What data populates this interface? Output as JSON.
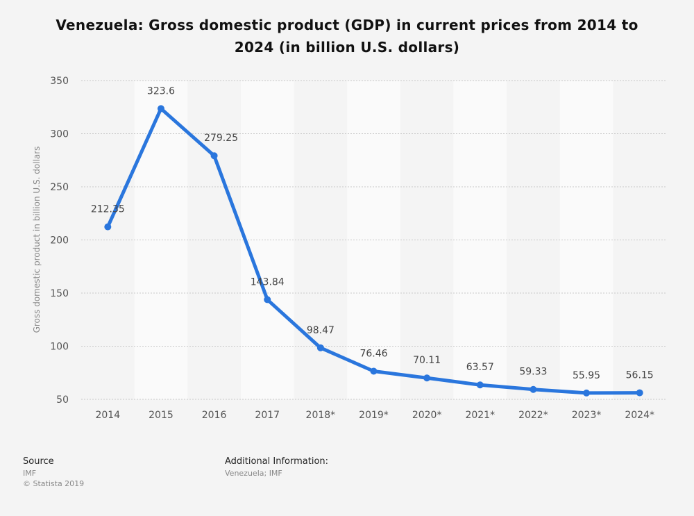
{
  "chart_data": {
    "type": "line",
    "title": "Venezuela: Gross domestic product (GDP) in current prices from 2014 to 2024 (in billion U.S. dollars)",
    "xlabel": "",
    "ylabel": "Gross domestic product in billion U.S. dollars",
    "categories": [
      "2014",
      "2015",
      "2016",
      "2017",
      "2018*",
      "2019*",
      "2020*",
      "2021*",
      "2022*",
      "2023*",
      "2024*"
    ],
    "values": [
      212.35,
      323.6,
      279.25,
      143.84,
      98.47,
      76.46,
      70.11,
      63.57,
      59.33,
      55.95,
      56.15
    ],
    "data_labels": [
      "212.35",
      "323.6",
      "279.25",
      "143.84",
      "98.47",
      "76.46",
      "70.11",
      "63.57",
      "59.33",
      "55.95",
      "56.15"
    ],
    "ylim": [
      50,
      350
    ],
    "yticks": [
      50,
      100,
      150,
      200,
      250,
      300,
      350
    ],
    "grid": true,
    "line_color": "#2a76dd"
  },
  "footer": {
    "source_label": "Source",
    "source_value": "IMF",
    "copyright": "© Statista 2019",
    "additional_label": "Additional Information:",
    "additional_value": "Venezuela; IMF"
  }
}
